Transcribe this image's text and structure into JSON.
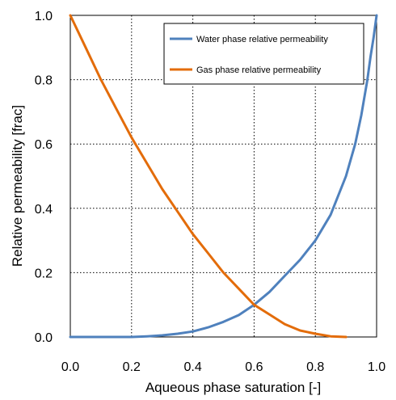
{
  "chart_data": {
    "type": "line",
    "xlabel": "Aqueous phase saturation  [-]",
    "ylabel": "Relative permeability [frac]",
    "xlim": [
      0,
      1
    ],
    "ylim": [
      0,
      1
    ],
    "x_ticks": [
      "0.0",
      "0.2",
      "0.4",
      "0.6",
      "0.8",
      "1.0"
    ],
    "y_ticks": [
      "0.0",
      "0.2",
      "0.4",
      "0.6",
      "0.8",
      "1.0"
    ],
    "grid": true,
    "legend_position": "top-right",
    "series": [
      {
        "name": "Water phase relative permeability",
        "color": "#4F81BD",
        "x": [
          0.0,
          0.1,
          0.2,
          0.25,
          0.3,
          0.35,
          0.4,
          0.45,
          0.5,
          0.55,
          0.6,
          0.65,
          0.7,
          0.75,
          0.8,
          0.85,
          0.9,
          0.93,
          0.95,
          0.97,
          0.98,
          0.99,
          1.0
        ],
        "y": [
          0.0,
          0.0,
          0.0,
          0.002,
          0.005,
          0.01,
          0.017,
          0.03,
          0.047,
          0.068,
          0.1,
          0.14,
          0.19,
          0.24,
          0.3,
          0.38,
          0.5,
          0.6,
          0.69,
          0.8,
          0.87,
          0.93,
          1.0
        ]
      },
      {
        "name": "Gas phase relative permeability",
        "color": "#E36C0A",
        "x": [
          0.0,
          0.05,
          0.1,
          0.15,
          0.2,
          0.25,
          0.3,
          0.35,
          0.4,
          0.45,
          0.5,
          0.55,
          0.6,
          0.65,
          0.7,
          0.75,
          0.8,
          0.85,
          0.9
        ],
        "y": [
          1.0,
          0.9,
          0.8,
          0.71,
          0.62,
          0.54,
          0.46,
          0.39,
          0.32,
          0.26,
          0.2,
          0.15,
          0.1,
          0.07,
          0.04,
          0.02,
          0.01,
          0.002,
          0.0
        ]
      }
    ]
  }
}
